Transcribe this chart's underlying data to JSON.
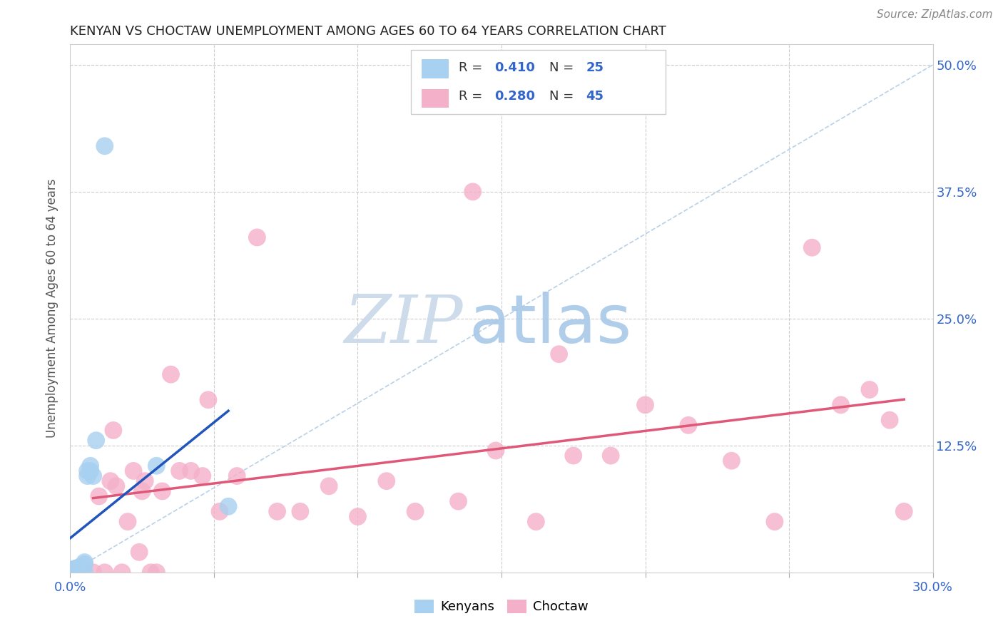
{
  "title": "KENYAN VS CHOCTAW UNEMPLOYMENT AMONG AGES 60 TO 64 YEARS CORRELATION CHART",
  "source": "Source: ZipAtlas.com",
  "ylabel": "Unemployment Among Ages 60 to 64 years",
  "ytick_labels": [
    "",
    "12.5%",
    "25.0%",
    "37.5%",
    "50.0%"
  ],
  "ytick_values": [
    0,
    0.125,
    0.25,
    0.375,
    0.5
  ],
  "xlim": [
    0,
    0.3
  ],
  "ylim": [
    0,
    0.52
  ],
  "legend_blue_R": "R = 0.410",
  "legend_blue_N": "N = 25",
  "legend_pink_R": "R = 0.280",
  "legend_pink_N": "N = 45",
  "kenyan_color": "#a8d0f0",
  "choctaw_color": "#f4b0c8",
  "kenyan_line_color": "#2255bb",
  "choctaw_line_color": "#e05878",
  "diagonal_color": "#b8d0e8",
  "watermark_ZIP": "ZIP",
  "watermark_atlas": "atlas",
  "kenyan_x": [
    0.0,
    0.0,
    0.001,
    0.001,
    0.001,
    0.002,
    0.002,
    0.002,
    0.003,
    0.003,
    0.003,
    0.004,
    0.004,
    0.005,
    0.005,
    0.005,
    0.006,
    0.006,
    0.007,
    0.007,
    0.008,
    0.009,
    0.012,
    0.03,
    0.055
  ],
  "kenyan_y": [
    0.0,
    0.002,
    0.0,
    0.001,
    0.003,
    0.0,
    0.002,
    0.004,
    0.0,
    0.002,
    0.005,
    0.0,
    0.005,
    0.0,
    0.008,
    0.01,
    0.095,
    0.1,
    0.1,
    0.105,
    0.095,
    0.13,
    0.42,
    0.105,
    0.065
  ],
  "choctaw_x": [
    0.008,
    0.01,
    0.012,
    0.014,
    0.016,
    0.018,
    0.02,
    0.022,
    0.024,
    0.026,
    0.028,
    0.03,
    0.032,
    0.035,
    0.038,
    0.042,
    0.046,
    0.052,
    0.058,
    0.065,
    0.072,
    0.08,
    0.09,
    0.1,
    0.11,
    0.12,
    0.135,
    0.148,
    0.162,
    0.175,
    0.188,
    0.2,
    0.215,
    0.23,
    0.245,
    0.258,
    0.268,
    0.278,
    0.285,
    0.29,
    0.015,
    0.025,
    0.048,
    0.14,
    0.17
  ],
  "choctaw_y": [
    0.0,
    0.075,
    0.0,
    0.09,
    0.085,
    0.0,
    0.05,
    0.1,
    0.02,
    0.09,
    0.0,
    0.0,
    0.08,
    0.195,
    0.1,
    0.1,
    0.095,
    0.06,
    0.095,
    0.33,
    0.06,
    0.06,
    0.085,
    0.055,
    0.09,
    0.06,
    0.07,
    0.12,
    0.05,
    0.115,
    0.115,
    0.165,
    0.145,
    0.11,
    0.05,
    0.32,
    0.165,
    0.18,
    0.15,
    0.06,
    0.14,
    0.08,
    0.17,
    0.375,
    0.215
  ]
}
